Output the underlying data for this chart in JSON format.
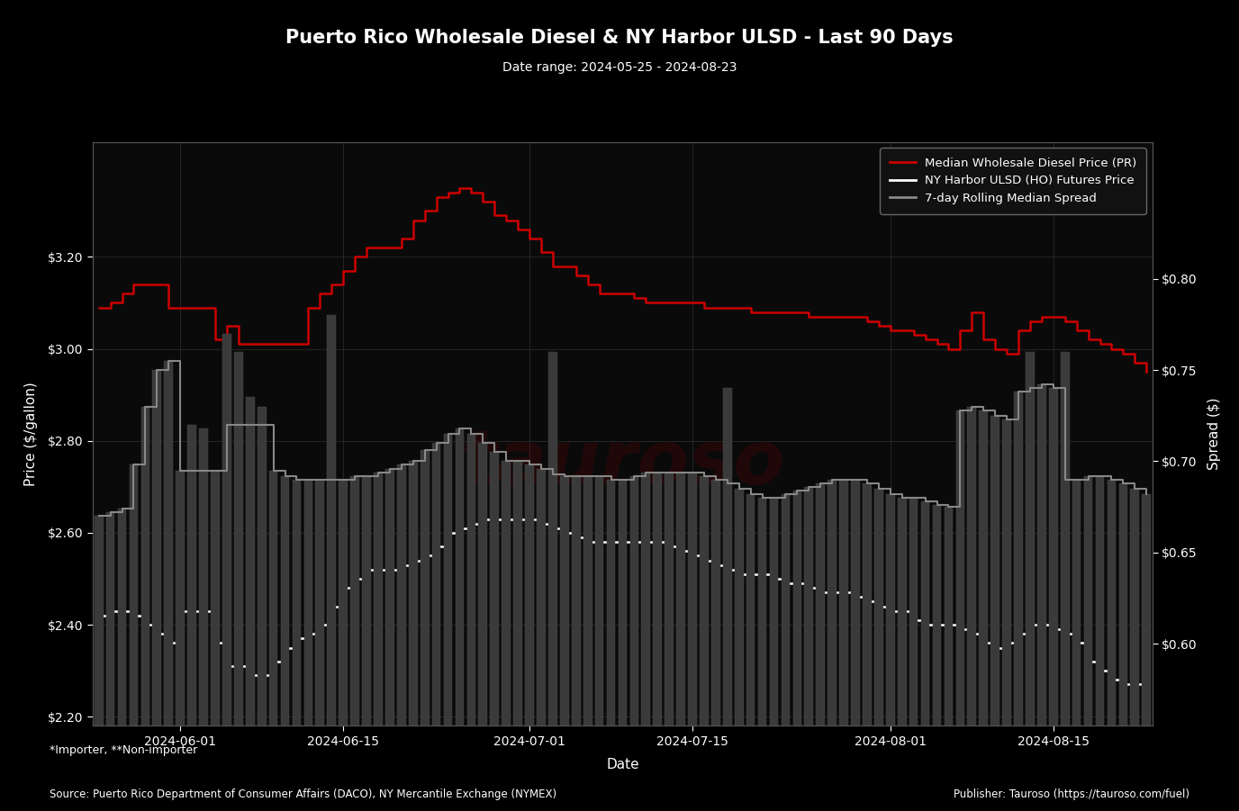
{
  "title": "Puerto Rico Wholesale Diesel & NY Harbor ULSD - Last 90 Days",
  "subtitle": "Date range: 2024-05-25 - 2024-08-23",
  "xlabel": "Date",
  "ylabel_left": "Price ($/gallon)",
  "ylabel_right": "Spread ($)",
  "bg_color": "#000000",
  "plot_bg_color": "#0a0a0a",
  "text_color": "#ffffff",
  "legend_bg": "#111111",
  "legend_edge": "#666666",
  "red_line_color": "#cc0000",
  "white_line_color": "#ffffff",
  "gray_line_color": "#888888",
  "bar_color": "#3a3a3a",
  "bar_edge_color": "#4a4a4a",
  "ylim_left": [
    2.18,
    3.45
  ],
  "ylim_right": [
    0.555,
    0.875
  ],
  "yticks_left": [
    2.2,
    2.4,
    2.6,
    2.8,
    3.0,
    3.2
  ],
  "yticks_right": [
    0.6,
    0.65,
    0.7,
    0.75,
    0.8
  ],
  "footnote_left": "*Importer, **Non-importer",
  "source_text": "Source: Puerto Rico Department of Consumer Affairs (DACO), NY Mercantile Exchange (NYMEX)",
  "publisher_text": "Publisher: Tauroso (https://tauroso.com/fuel)",
  "watermark_text": "tauroso",
  "dates": [
    "2024-05-25",
    "2024-05-26",
    "2024-05-27",
    "2024-05-28",
    "2024-05-29",
    "2024-05-30",
    "2024-05-31",
    "2024-06-01",
    "2024-06-02",
    "2024-06-03",
    "2024-06-04",
    "2024-06-05",
    "2024-06-06",
    "2024-06-07",
    "2024-06-08",
    "2024-06-09",
    "2024-06-10",
    "2024-06-11",
    "2024-06-12",
    "2024-06-13",
    "2024-06-14",
    "2024-06-15",
    "2024-06-16",
    "2024-06-17",
    "2024-06-18",
    "2024-06-19",
    "2024-06-20",
    "2024-06-21",
    "2024-06-22",
    "2024-06-23",
    "2024-06-24",
    "2024-06-25",
    "2024-06-26",
    "2024-06-27",
    "2024-06-28",
    "2024-06-29",
    "2024-06-30",
    "2024-07-01",
    "2024-07-02",
    "2024-07-03",
    "2024-07-04",
    "2024-07-05",
    "2024-07-06",
    "2024-07-07",
    "2024-07-08",
    "2024-07-09",
    "2024-07-10",
    "2024-07-11",
    "2024-07-12",
    "2024-07-13",
    "2024-07-14",
    "2024-07-15",
    "2024-07-16",
    "2024-07-17",
    "2024-07-18",
    "2024-07-19",
    "2024-07-20",
    "2024-07-21",
    "2024-07-22",
    "2024-07-23",
    "2024-07-24",
    "2024-07-25",
    "2024-07-26",
    "2024-07-27",
    "2024-07-28",
    "2024-07-29",
    "2024-07-30",
    "2024-07-31",
    "2024-08-01",
    "2024-08-02",
    "2024-08-03",
    "2024-08-04",
    "2024-08-05",
    "2024-08-06",
    "2024-08-07",
    "2024-08-08",
    "2024-08-09",
    "2024-08-10",
    "2024-08-11",
    "2024-08-12",
    "2024-08-13",
    "2024-08-14",
    "2024-08-15",
    "2024-08-16",
    "2024-08-17",
    "2024-08-18",
    "2024-08-19",
    "2024-08-20",
    "2024-08-21",
    "2024-08-22",
    "2024-08-23"
  ],
  "red_line": [
    3.09,
    3.1,
    3.12,
    3.14,
    3.14,
    3.14,
    3.09,
    3.09,
    3.09,
    3.09,
    3.02,
    3.05,
    3.01,
    3.01,
    3.01,
    3.01,
    3.01,
    3.01,
    3.09,
    3.12,
    3.14,
    3.17,
    3.2,
    3.22,
    3.22,
    3.22,
    3.24,
    3.28,
    3.3,
    3.33,
    3.34,
    3.35,
    3.34,
    3.32,
    3.29,
    3.28,
    3.26,
    3.24,
    3.21,
    3.18,
    3.18,
    3.16,
    3.14,
    3.12,
    3.12,
    3.12,
    3.11,
    3.1,
    3.1,
    3.1,
    3.1,
    3.1,
    3.09,
    3.09,
    3.09,
    3.09,
    3.08,
    3.08,
    3.08,
    3.08,
    3.08,
    3.07,
    3.07,
    3.07,
    3.07,
    3.07,
    3.06,
    3.05,
    3.04,
    3.04,
    3.03,
    3.02,
    3.01,
    3.0,
    3.04,
    3.08,
    3.02,
    3.0,
    2.99,
    3.04,
    3.06,
    3.07,
    3.07,
    3.06,
    3.04,
    3.02,
    3.01,
    3.0,
    2.99,
    2.97,
    2.95
  ],
  "white_line": [
    2.42,
    2.43,
    2.43,
    2.42,
    2.4,
    2.38,
    2.36,
    2.43,
    2.43,
    2.43,
    2.36,
    2.31,
    2.31,
    2.29,
    2.29,
    2.32,
    2.35,
    2.37,
    2.38,
    2.4,
    2.44,
    2.48,
    2.5,
    2.52,
    2.52,
    2.52,
    2.53,
    2.54,
    2.55,
    2.57,
    2.6,
    2.61,
    2.62,
    2.63,
    2.63,
    2.63,
    2.63,
    2.63,
    2.62,
    2.61,
    2.6,
    2.59,
    2.58,
    2.58,
    2.58,
    2.58,
    2.58,
    2.58,
    2.58,
    2.57,
    2.56,
    2.55,
    2.54,
    2.53,
    2.52,
    2.51,
    2.51,
    2.51,
    2.5,
    2.49,
    2.49,
    2.48,
    2.47,
    2.47,
    2.47,
    2.46,
    2.45,
    2.44,
    2.43,
    2.43,
    2.41,
    2.4,
    2.4,
    2.4,
    2.39,
    2.38,
    2.36,
    2.35,
    2.36,
    2.38,
    2.4,
    2.4,
    2.39,
    2.38,
    2.36,
    2.32,
    2.3,
    2.28,
    2.27,
    2.27,
    2.27
  ],
  "spread_gray_line": [
    0.67,
    0.672,
    0.674,
    0.698,
    0.73,
    0.75,
    0.755,
    0.695,
    0.695,
    0.695,
    0.695,
    0.72,
    0.72,
    0.72,
    0.72,
    0.695,
    0.692,
    0.69,
    0.69,
    0.69,
    0.69,
    0.69,
    0.692,
    0.692,
    0.694,
    0.696,
    0.698,
    0.7,
    0.706,
    0.71,
    0.715,
    0.718,
    0.715,
    0.71,
    0.705,
    0.7,
    0.7,
    0.698,
    0.696,
    0.693,
    0.692,
    0.692,
    0.692,
    0.692,
    0.69,
    0.69,
    0.692,
    0.694,
    0.694,
    0.694,
    0.694,
    0.694,
    0.692,
    0.69,
    0.688,
    0.685,
    0.682,
    0.68,
    0.68,
    0.682,
    0.684,
    0.686,
    0.688,
    0.69,
    0.69,
    0.69,
    0.688,
    0.685,
    0.682,
    0.68,
    0.68,
    0.678,
    0.676,
    0.675,
    0.728,
    0.73,
    0.728,
    0.725,
    0.723,
    0.738,
    0.74,
    0.742,
    0.74,
    0.69,
    0.69,
    0.692,
    0.692,
    0.69,
    0.688,
    0.685,
    0.682
  ],
  "spread_bars": [
    0.67,
    0.672,
    0.674,
    0.698,
    0.73,
    0.75,
    0.755,
    0.695,
    0.72,
    0.718,
    0.695,
    0.77,
    0.76,
    0.735,
    0.73,
    0.695,
    0.692,
    0.69,
    0.69,
    0.69,
    0.78,
    0.69,
    0.692,
    0.692,
    0.694,
    0.696,
    0.698,
    0.7,
    0.706,
    0.71,
    0.715,
    0.718,
    0.715,
    0.71,
    0.705,
    0.7,
    0.7,
    0.698,
    0.696,
    0.76,
    0.692,
    0.692,
    0.692,
    0.692,
    0.69,
    0.69,
    0.692,
    0.694,
    0.694,
    0.694,
    0.694,
    0.694,
    0.692,
    0.69,
    0.74,
    0.685,
    0.682,
    0.68,
    0.68,
    0.682,
    0.684,
    0.686,
    0.688,
    0.69,
    0.69,
    0.69,
    0.688,
    0.685,
    0.682,
    0.68,
    0.68,
    0.678,
    0.676,
    0.675,
    0.728,
    0.73,
    0.728,
    0.725,
    0.723,
    0.738,
    0.76,
    0.742,
    0.74,
    0.76,
    0.69,
    0.692,
    0.692,
    0.69,
    0.688,
    0.685,
    0.682
  ],
  "xtick_dates": [
    "2024-06-01",
    "2024-06-15",
    "2024-07-01",
    "2024-07-15",
    "2024-08-01",
    "2024-08-15"
  ]
}
